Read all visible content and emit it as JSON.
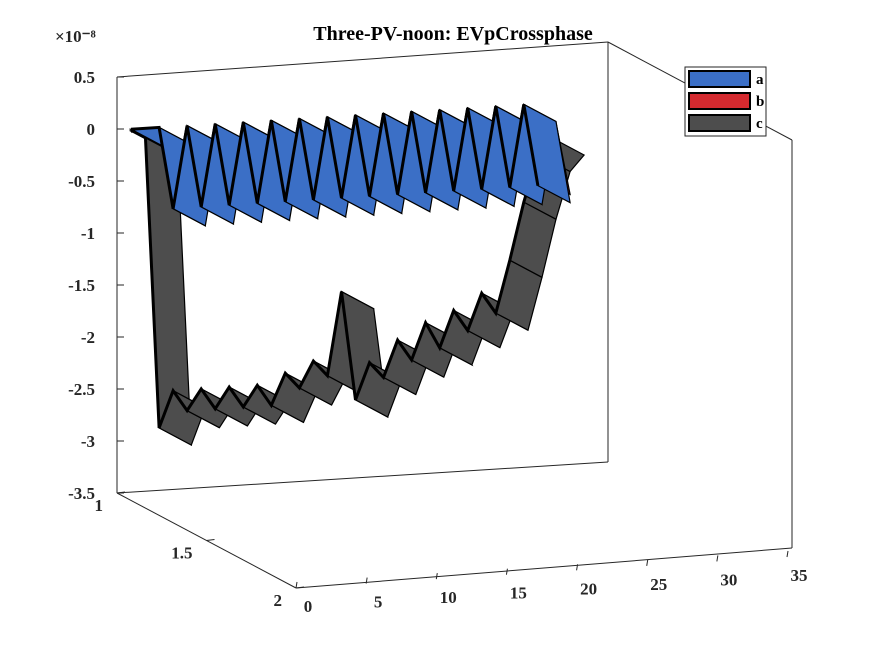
{
  "chart_data": {
    "type": "area",
    "title": "Three-PV-noon: EVpCrossphase",
    "exponent_label": "×10⁻⁸",
    "xlabel": "",
    "ylabel": "",
    "zlabel": "",
    "x_ticks": [
      "0",
      "5",
      "10",
      "15",
      "20",
      "25",
      "30",
      "35"
    ],
    "y_ticks": [
      "1",
      "1.5",
      "2"
    ],
    "z_ticks": [
      "0.5",
      "0",
      "-0.5",
      "-1",
      "-1.5",
      "-2",
      "-2.5",
      "-3",
      "-3.5"
    ],
    "xlim": [
      0,
      35
    ],
    "ylim": [
      1,
      2
    ],
    "zlim": [
      -3.5,
      0.5
    ],
    "legend_position": "top-right",
    "grid": false,
    "series": [
      {
        "name": "a",
        "color": "#3b6fc6",
        "x": [
          1,
          3,
          4,
          5,
          6,
          7,
          8,
          9,
          10,
          11,
          12,
          13,
          14,
          15,
          16,
          17,
          18,
          19,
          20,
          21,
          22,
          23,
          24,
          25,
          26,
          27,
          28,
          29,
          30
        ],
        "values": [
          -0.01,
          -0.01,
          -0.8,
          -0.01,
          -0.8,
          -0.01,
          -0.8,
          -0.01,
          -0.8,
          -0.01,
          -0.8,
          -0.01,
          -0.8,
          -0.01,
          -0.8,
          -0.01,
          -0.8,
          -0.01,
          -0.8,
          -0.01,
          -0.8,
          -0.01,
          -0.8,
          -0.01,
          -0.8,
          -0.01,
          -0.8,
          -0.01,
          -0.8
        ]
      },
      {
        "name": "b",
        "color": "#d42a2f",
        "x": [
          1,
          3,
          4,
          5,
          6,
          7,
          8,
          9,
          10,
          11,
          12,
          13,
          14,
          15,
          16,
          17,
          18,
          19,
          20,
          21,
          22,
          23,
          24,
          25,
          26,
          27,
          28,
          29,
          30
        ],
        "values": [
          -0.02,
          -0.02,
          -0.72,
          -0.02,
          -0.72,
          -0.02,
          -0.72,
          -0.02,
          -0.72,
          -0.02,
          -0.72,
          -0.02,
          -0.72,
          -0.02,
          -0.72,
          -0.02,
          -0.72,
          -0.02,
          -0.72,
          -0.02,
          -0.72,
          -0.02,
          -0.72,
          -0.02,
          -0.72,
          -0.02,
          -0.72,
          -0.02,
          -0.72
        ]
      },
      {
        "name": "c",
        "color": "#4d4d4d",
        "x": [
          1,
          2,
          3,
          4,
          5,
          6,
          7,
          8,
          9,
          10,
          11,
          12,
          13,
          14,
          15,
          16,
          17,
          18,
          19,
          20,
          21,
          22,
          23,
          24,
          25,
          26,
          27,
          28,
          29,
          30,
          31
        ],
        "values": [
          -0.03,
          -0.03,
          -2.9,
          -2.55,
          -2.75,
          -2.55,
          -2.75,
          -2.55,
          -2.75,
          -2.55,
          -2.75,
          -2.45,
          -2.6,
          -2.35,
          -2.5,
          -1.7,
          -2.75,
          -2.4,
          -2.55,
          -2.2,
          -2.4,
          -2.05,
          -2.3,
          -1.95,
          -2.15,
          -1.8,
          -2.0,
          -1.5,
          -0.95,
          -0.5,
          -0.35
        ]
      }
    ]
  }
}
